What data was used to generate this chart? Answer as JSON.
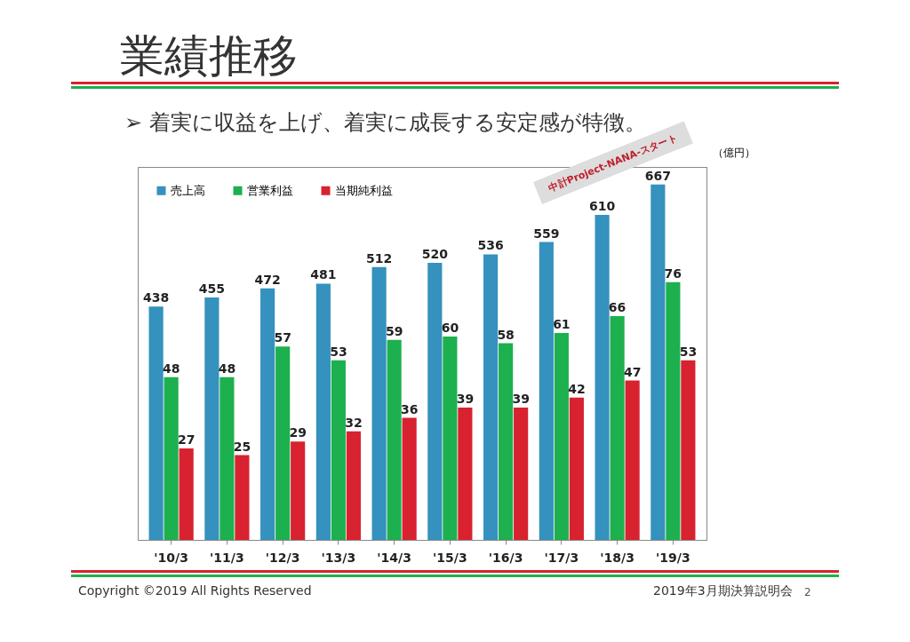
{
  "chart_data": {
    "type": "bar",
    "title": "業績推移",
    "subtitle": "➢ 着実に収益を上げ、着実に成長する安定感が特徴。",
    "categories": [
      "'10/3",
      "'11/3",
      "'12/3",
      "'13/3",
      "'14/3",
      "'15/3",
      "'16/3",
      "'17/3",
      "'18/3",
      "'19/3"
    ],
    "series": [
      {
        "name": "売上高",
        "color": "#3591bd",
        "values": [
          438,
          455,
          472,
          481,
          512,
          520,
          536,
          559,
          610,
          667
        ]
      },
      {
        "name": "営業利益",
        "color": "#1db04f",
        "axis": "y2",
        "values": [
          48,
          48,
          57,
          53,
          59,
          60,
          58,
          61,
          66,
          76
        ]
      },
      {
        "name": "当期純利益",
        "color": "#d8222f",
        "axis": "y2",
        "values": [
          27,
          25,
          29,
          32,
          36,
          39,
          39,
          42,
          47,
          53
        ]
      }
    ],
    "data_labels": true,
    "ylim": [
      0,
      700
    ],
    "y2lim": [
      0,
      110
    ],
    "y2label": "（億円）",
    "tick_labels": "x",
    "legend": "top left",
    "annotations": [
      "中計Project-NANA-スタート",
      "Copyright ©2019 All Rights Reserved",
      "2019年3月期決算説明会",
      "2"
    ]
  }
}
